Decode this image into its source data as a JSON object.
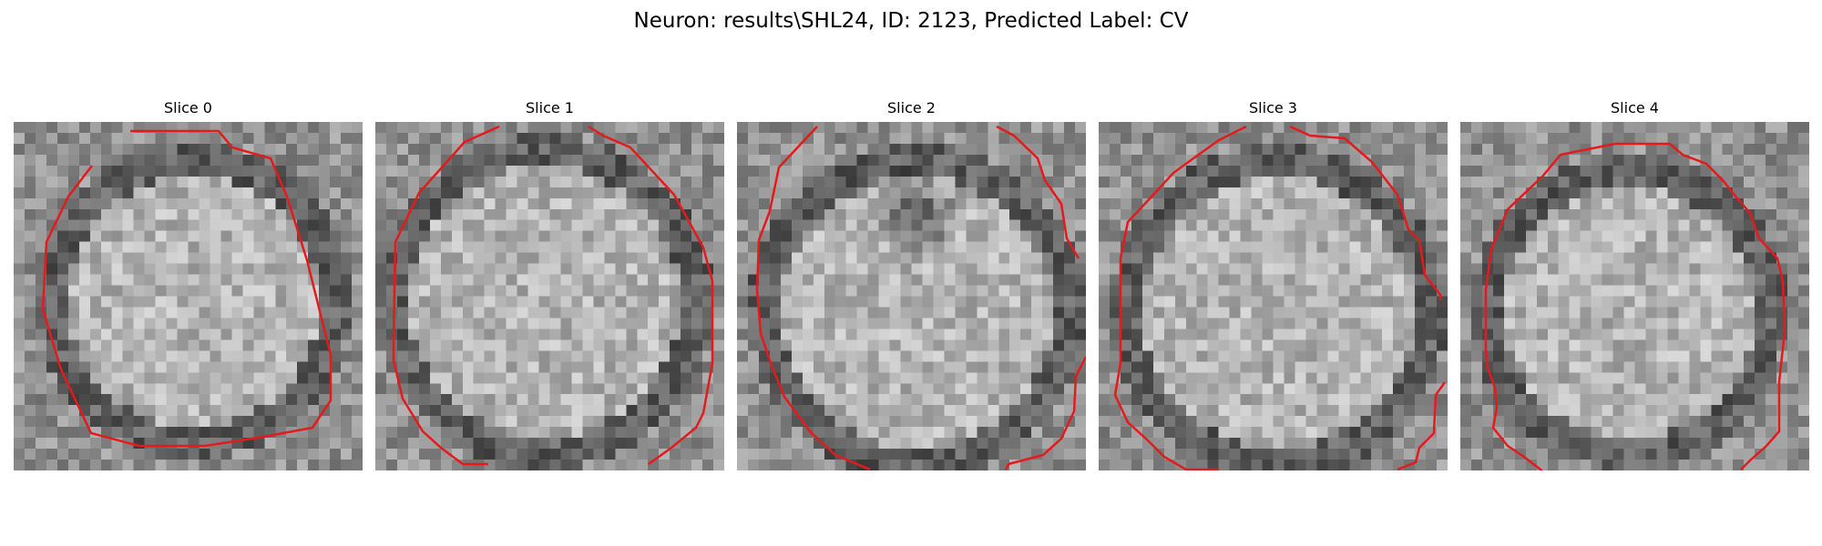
{
  "figure": {
    "title": "Neuron: results\\SHL24, ID: 2123, Predicted Label: CV"
  },
  "contour_color": "#e41a1c",
  "slices": [
    {
      "label": "Slice 0"
    },
    {
      "label": "Slice 1"
    },
    {
      "label": "Slice 2"
    },
    {
      "label": "Slice 3"
    },
    {
      "label": "Slice 4"
    }
  ]
}
